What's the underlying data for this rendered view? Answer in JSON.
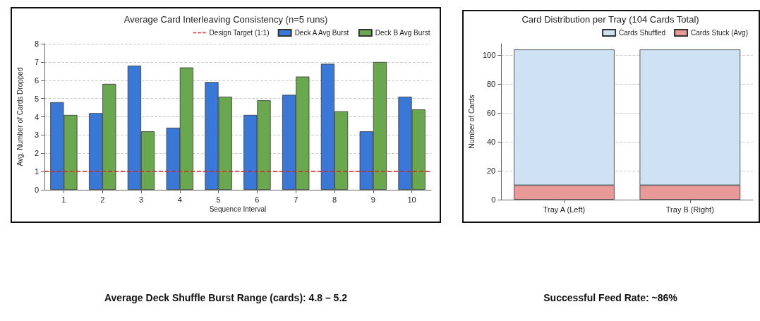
{
  "chart_data": [
    {
      "type": "bar",
      "title": "Average Card Interleaving Consistency (n=5 runs)",
      "xlabel": "Sequence Interval",
      "ylabel": "Avg. Number of Cards Dropped",
      "categories": [
        "1",
        "2",
        "3",
        "4",
        "5",
        "6",
        "7",
        "8",
        "9",
        "10"
      ],
      "series": [
        {
          "name": "Deck A Avg Burst",
          "color": "#3a78d8",
          "values": [
            4.8,
            4.2,
            6.8,
            3.4,
            5.9,
            4.1,
            5.2,
            6.9,
            3.2,
            5.1
          ]
        },
        {
          "name": "Deck B Avg Burst",
          "color": "#6aa84f",
          "values": [
            4.1,
            5.8,
            3.2,
            6.7,
            5.1,
            4.9,
            6.2,
            4.3,
            7.0,
            4.4
          ]
        }
      ],
      "ylim": [
        0,
        8
      ],
      "yticks": [
        0,
        1,
        2,
        3,
        4,
        5,
        6,
        7,
        8
      ],
      "grid": "y",
      "legend": "top right",
      "ref_lines": [
        {
          "axis": "y",
          "value": 1,
          "label": "Design Target (1:1)",
          "color": "#e02020",
          "line_style": "dashed"
        }
      ],
      "annotations": [
        "Average Deck Shuffle Burst Range (cards): 4.8 – 5.2"
      ]
    },
    {
      "type": "bar",
      "title": "Card Distribution per Tray (104 Cards Total)",
      "ylabel": "Number of Cards",
      "categories": [
        "Tray A (Left)",
        "Tray B (Right)"
      ],
      "stacked": true,
      "series": [
        {
          "name": "Cards Stuck (Avg)",
          "color": "#ea9999",
          "values": [
            10,
            10
          ]
        },
        {
          "name": "Cards Shuffled",
          "color": "#cfe2f3",
          "values": [
            94,
            94
          ]
        }
      ],
      "ylim": [
        0,
        108
      ],
      "yticks": [
        0,
        20,
        40,
        60,
        80,
        100
      ],
      "grid": "y",
      "legend": "top right",
      "annotations": [
        "Successful Feed Rate: ~86%"
      ]
    }
  ]
}
